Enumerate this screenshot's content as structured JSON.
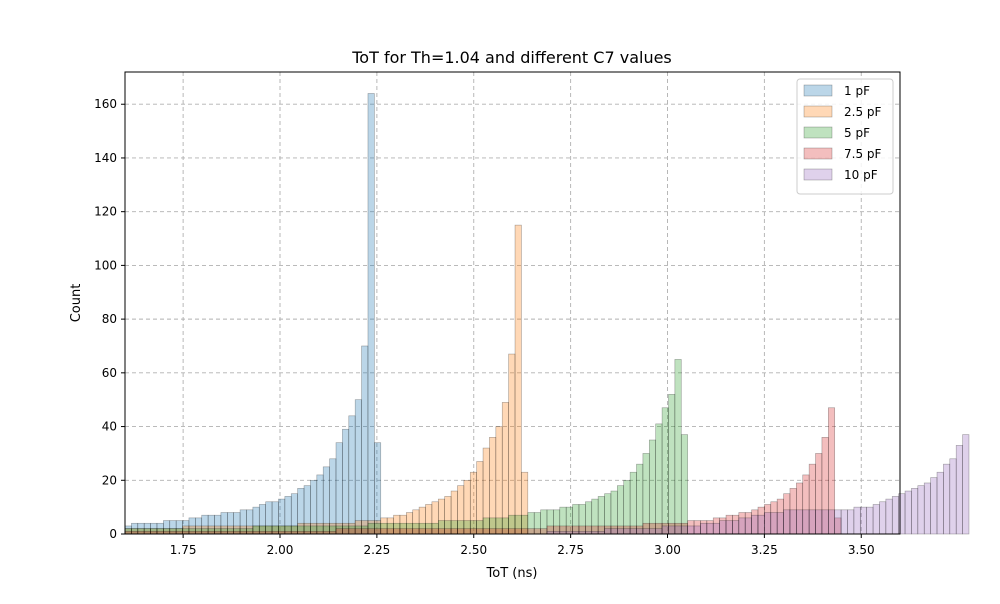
{
  "chart_data": {
    "type": "bar",
    "title": "ToT for Th=1.04 and different C7 values",
    "xlabel": "ToT (ns)",
    "ylabel": "Count",
    "xlim": [
      1.6,
      3.6
    ],
    "ylim": [
      0,
      172
    ],
    "xticks": [
      "1.75",
      "2.00",
      "2.25",
      "2.50",
      "2.75",
      "3.00",
      "3.25",
      "3.50"
    ],
    "yticks": [
      "0",
      "20",
      "40",
      "60",
      "80",
      "100",
      "120",
      "140",
      "160"
    ],
    "grid": true,
    "legend_position": "top-right",
    "series": [
      {
        "name": "1 pF",
        "color": "#1f77b4",
        "bin_start": 1.6,
        "bin_width": 0.0165,
        "counts": [
          3,
          4,
          4,
          4,
          4,
          4,
          5,
          5,
          5,
          5,
          6,
          6,
          7,
          7,
          7,
          8,
          8,
          8,
          9,
          9,
          10,
          11,
          12,
          12,
          13,
          14,
          15,
          17,
          18,
          20,
          22,
          25,
          28,
          34,
          39,
          44,
          50,
          70,
          164,
          34
        ]
      },
      {
        "name": "2.5 pF",
        "color": "#ff7f0e",
        "bin_start": 1.6,
        "bin_width": 0.0165,
        "counts": [
          2,
          2,
          2,
          2,
          2,
          2,
          2,
          2,
          2,
          3,
          3,
          3,
          3,
          3,
          3,
          3,
          3,
          3,
          3,
          3,
          3,
          3,
          3,
          3,
          3,
          3,
          3,
          4,
          4,
          4,
          4,
          4,
          4,
          4,
          4,
          4,
          5,
          5,
          5,
          5,
          6,
          6,
          7,
          7,
          8,
          9,
          10,
          11,
          12,
          13,
          14,
          16,
          18,
          20,
          23,
          27,
          32,
          36,
          40,
          49,
          67,
          115,
          23
        ]
      },
      {
        "name": "5 pF",
        "color": "#2ca02c",
        "bin_start": 1.6,
        "bin_width": 0.0165,
        "counts": [
          2,
          2,
          2,
          2,
          2,
          2,
          2,
          2,
          2,
          2,
          2,
          2,
          2,
          2,
          2,
          2,
          2,
          2,
          2,
          2,
          3,
          3,
          3,
          3,
          3,
          3,
          3,
          3,
          3,
          3,
          3,
          3,
          3,
          3,
          3,
          3,
          3,
          3,
          4,
          4,
          4,
          4,
          4,
          4,
          4,
          4,
          4,
          4,
          4,
          5,
          5,
          5,
          5,
          5,
          5,
          5,
          6,
          6,
          6,
          6,
          7,
          7,
          7,
          8,
          8,
          9,
          9,
          9,
          10,
          10,
          11,
          11,
          12,
          13,
          14,
          15,
          16,
          18,
          20,
          23,
          26,
          30,
          35,
          41,
          47,
          52,
          65,
          37
        ]
      },
      {
        "name": "7.5 pF",
        "color": "#d62728",
        "bin_start": 1.6,
        "bin_width": 0.0165,
        "counts": [
          1,
          1,
          1,
          1,
          1,
          1,
          1,
          1,
          1,
          1,
          1,
          1,
          1,
          1,
          1,
          1,
          1,
          1,
          1,
          1,
          1,
          1,
          1,
          1,
          1,
          1,
          1,
          1,
          1,
          1,
          1,
          1,
          1,
          2,
          2,
          2,
          2,
          2,
          2,
          2,
          2,
          2,
          2,
          2,
          2,
          2,
          2,
          2,
          2,
          2,
          2,
          2,
          2,
          2,
          2,
          2,
          2,
          2,
          2,
          2,
          2,
          2,
          2,
          2,
          2,
          2,
          3,
          3,
          3,
          3,
          3,
          3,
          3,
          3,
          3,
          3,
          3,
          3,
          3,
          3,
          3,
          4,
          4,
          4,
          4,
          4,
          4,
          4,
          5,
          5,
          5,
          5,
          6,
          6,
          7,
          7,
          8,
          8,
          9,
          10,
          11,
          12,
          13,
          15,
          17,
          19,
          22,
          26,
          30,
          36,
          47,
          6
        ]
      },
      {
        "name": "10 pF",
        "color": "#9467bd",
        "bin_start": 1.6,
        "bin_width": 0.0165,
        "counts": [
          0,
          0,
          0,
          0,
          0,
          0,
          0,
          0,
          0,
          0,
          0,
          0,
          0,
          0,
          0,
          0,
          0,
          0,
          0,
          0,
          0,
          0,
          0,
          0,
          0,
          0,
          0,
          0,
          0,
          0,
          0,
          0,
          0,
          0,
          0,
          0,
          0,
          0,
          0,
          0,
          0,
          0,
          0,
          0,
          0,
          0,
          0,
          0,
          0,
          0,
          0,
          0,
          0,
          0,
          0,
          0,
          0,
          0,
          0,
          0,
          0,
          0,
          0,
          0,
          0,
          0,
          1,
          1,
          1,
          1,
          1,
          1,
          1,
          1,
          1,
          2,
          2,
          2,
          2,
          2,
          2,
          2,
          2,
          2,
          3,
          3,
          3,
          3,
          3,
          3,
          4,
          4,
          4,
          5,
          5,
          5,
          6,
          6,
          7,
          7,
          8,
          8,
          8,
          9,
          9,
          9,
          9,
          9,
          9,
          9,
          9,
          9,
          9,
          9,
          10,
          10,
          10,
          11,
          12,
          13,
          14,
          15,
          16,
          17,
          18,
          19,
          21,
          23,
          26,
          28,
          33,
          37
        ]
      }
    ]
  }
}
